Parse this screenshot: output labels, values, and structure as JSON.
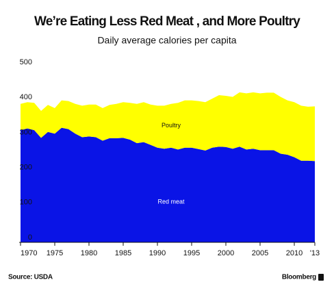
{
  "chart_data": {
    "type": "stacked_area",
    "title": "We’re Eating Less Red Meat , and More Poultry",
    "subtitle": "Daily average calories per capita",
    "x": [
      1970,
      1971,
      1972,
      1973,
      1974,
      1975,
      1976,
      1977,
      1978,
      1979,
      1980,
      1981,
      1982,
      1983,
      1984,
      1985,
      1986,
      1987,
      1988,
      1989,
      1990,
      1991,
      1992,
      1993,
      1994,
      1995,
      1996,
      1997,
      1998,
      1999,
      2000,
      2001,
      2002,
      2003,
      2004,
      2005,
      2006,
      2007,
      2008,
      2009,
      2010,
      2011,
      2012,
      2013
    ],
    "series": [
      {
        "name": "Red meat",
        "color": "#0a14e6",
        "values": [
          320,
          325,
          320,
          298,
          315,
          310,
          327,
          323,
          310,
          300,
          302,
          300,
          290,
          297,
          297,
          298,
          293,
          283,
          286,
          278,
          270,
          267,
          270,
          265,
          270,
          270,
          266,
          262,
          270,
          273,
          272,
          267,
          273,
          265,
          267,
          263,
          263,
          263,
          253,
          250,
          243,
          233,
          233,
          232
        ]
      },
      {
        "name": "Poultry",
        "color": "#ffff00",
        "values": [
          75,
          75,
          78,
          77,
          77,
          73,
          78,
          80,
          85,
          90,
          91,
          93,
          93,
          95,
          98,
          102,
          105,
          112,
          114,
          115,
          120,
          123,
          125,
          133,
          135,
          135,
          137,
          138,
          140,
          147,
          146,
          148,
          155,
          160,
          161,
          162,
          164,
          164,
          162,
          155,
          157,
          157,
          154,
          156
        ]
      }
    ],
    "xlim": [
      1970,
      2013
    ],
    "xticks": [
      1970,
      1975,
      1980,
      1985,
      1990,
      1995,
      2000,
      2005,
      2010,
      {
        "value": 2013,
        "label": "'13"
      }
    ],
    "ylim": [
      0,
      500
    ],
    "yticks": [
      0,
      100,
      200,
      300,
      400,
      500
    ],
    "source": "Source: USDA",
    "brand": "Bloomberg"
  }
}
